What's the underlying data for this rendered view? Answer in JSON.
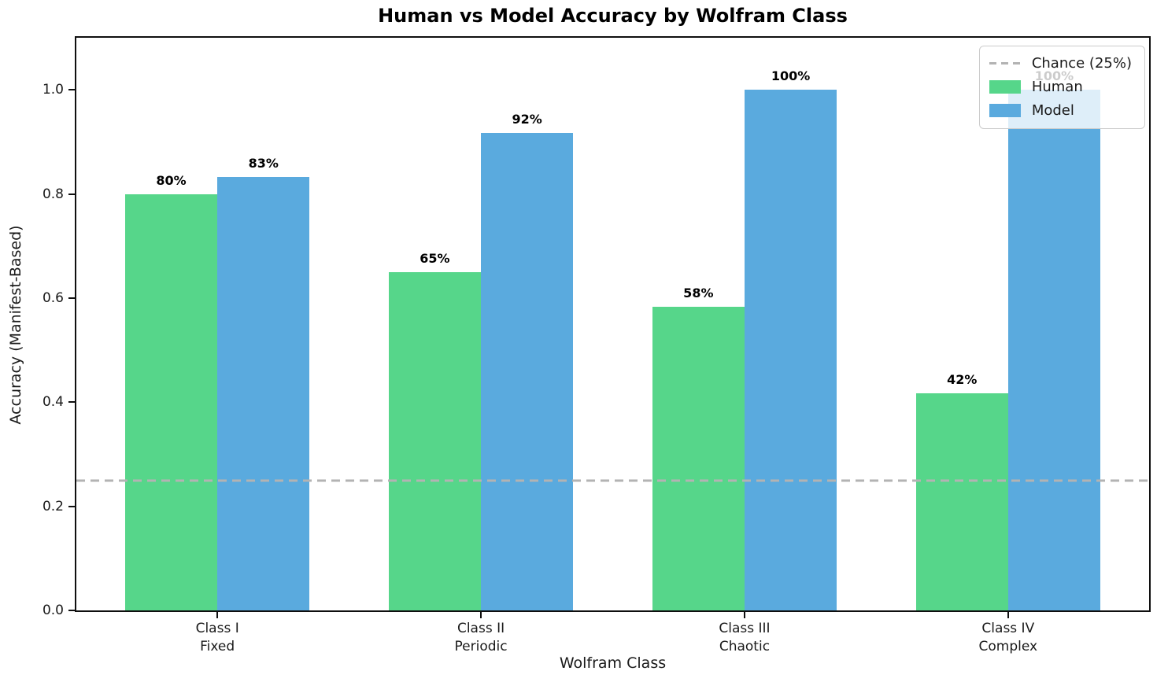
{
  "chart_data": {
    "type": "bar",
    "title": "Human vs Model Accuracy by Wolfram Class",
    "xlabel": "Wolfram Class",
    "ylabel": "Accuracy (Manifest-Based)",
    "ylim": [
      0,
      1.1
    ],
    "yticks": [
      {
        "value": 0.0,
        "label": "0.0"
      },
      {
        "value": 0.2,
        "label": "0.2"
      },
      {
        "value": 0.4,
        "label": "0.4"
      },
      {
        "value": 0.6,
        "label": "0.6"
      },
      {
        "value": 0.8,
        "label": "0.8"
      },
      {
        "value": 1.0,
        "label": "1.0"
      }
    ],
    "categories": [
      {
        "label": "Class I",
        "sublabel": "Fixed"
      },
      {
        "label": "Class II",
        "sublabel": "Periodic"
      },
      {
        "label": "Class III",
        "sublabel": "Chaotic"
      },
      {
        "label": "Class IV",
        "sublabel": "Complex"
      }
    ],
    "series": [
      {
        "name": "Human",
        "color": "#56d68a",
        "values": [
          0.8,
          0.65,
          0.583,
          0.417
        ],
        "labels": [
          "80%",
          "65%",
          "58%",
          "42%"
        ]
      },
      {
        "name": "Model",
        "color": "#5aaade",
        "values": [
          0.833,
          0.917,
          1.0,
          1.0
        ],
        "labels": [
          "83%",
          "92%",
          "100%",
          "100%"
        ]
      }
    ],
    "reference_line": {
      "value": 0.25,
      "label": "Chance (25%)",
      "color": "#b3b3b3",
      "style": "dashed"
    },
    "legend": {
      "position": "upper right"
    },
    "grid": false,
    "bar_width": 0.35,
    "x_positions": [
      0,
      1,
      2,
      3
    ],
    "xlim": [
      -0.535,
      3.535
    ]
  }
}
